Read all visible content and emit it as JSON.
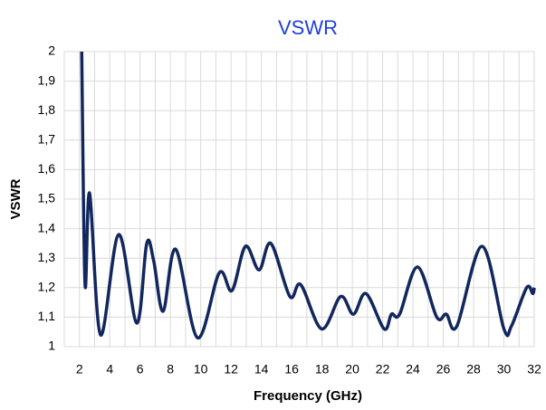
{
  "chart_data": {
    "type": "line",
    "title": "VSWR",
    "x_label": "Frequency  (GHz)",
    "y_label": "VSWR",
    "x": [
      2.15,
      2.37,
      2.67,
      3.39,
      4.59,
      5.78,
      6.44,
      6.9,
      7.52,
      8.35,
      9.79,
      11.22,
      12.06,
      12.95,
      13.85,
      14.63,
      15.88,
      16.6,
      17.98,
      19.23,
      20.07,
      20.9,
      22.1,
      22.58,
      23.12,
      24.3,
      25.57,
      26.2,
      26.9,
      28.56,
      30.0,
      30.5,
      31.5,
      31.9,
      32.0
    ],
    "series": [
      {
        "name": "VSWR",
        "color": "#12275e",
        "values": [
          2.0,
          1.21,
          1.52,
          1.04,
          1.38,
          1.08,
          1.35,
          1.29,
          1.12,
          1.33,
          1.03,
          1.25,
          1.19,
          1.34,
          1.26,
          1.35,
          1.17,
          1.21,
          1.06,
          1.17,
          1.11,
          1.18,
          1.06,
          1.11,
          1.11,
          1.27,
          1.1,
          1.11,
          1.07,
          1.34,
          1.06,
          1.07,
          1.2,
          1.18,
          1.2
        ]
      }
    ],
    "xlim": [
      1,
      32
    ],
    "xticks": [
      2,
      4,
      6,
      8,
      10,
      12,
      14,
      16,
      18,
      20,
      22,
      24,
      26,
      28,
      30,
      32
    ],
    "x_minor_grid": [
      1,
      3,
      5,
      7,
      9,
      11,
      13,
      15,
      17,
      19,
      21,
      23,
      25,
      27,
      29,
      31
    ],
    "ylim": [
      1,
      2
    ],
    "yticks": [
      1,
      {
        "value": 1.1,
        "label": "1,1"
      },
      {
        "value": 1.2,
        "label": "1,2"
      },
      {
        "value": 1.3,
        "label": "1,3"
      },
      {
        "value": 1.4,
        "label": "1,4"
      },
      {
        "value": 1.5,
        "label": "1,5"
      },
      {
        "value": 1.6,
        "label": "1,6"
      },
      {
        "value": 1.7,
        "label": "1,7"
      },
      {
        "value": 1.8,
        "label": "1,8"
      },
      {
        "value": 1.9,
        "label": "1,9"
      },
      2
    ],
    "grid": true
  }
}
